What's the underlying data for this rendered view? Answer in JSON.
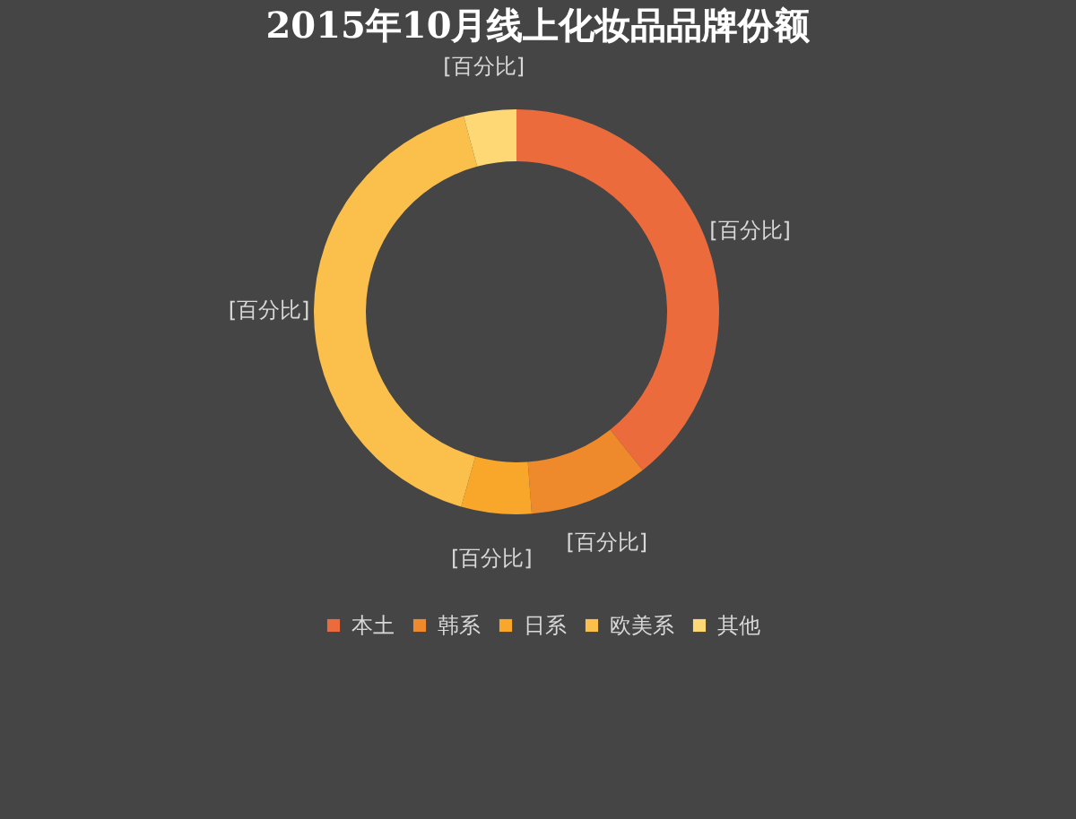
{
  "chart_data": {
    "type": "donut",
    "title": "2015年10月线上化妆品品牌份额",
    "categories": [
      "本土",
      "韩系",
      "日系",
      "欧美系",
      "其他"
    ],
    "values": [
      39.3,
      9.5,
      5.6,
      41.4,
      4.2
    ],
    "colors": [
      "#ec6b3c",
      "#ef8a2c",
      "#f9a72a",
      "#fbbf4b",
      "#fdd874"
    ],
    "value_labels": [
      "[百分比]",
      "[百分比]",
      "[百分比]",
      "[百分比]",
      "[百分比]"
    ],
    "legend": "bottom"
  }
}
